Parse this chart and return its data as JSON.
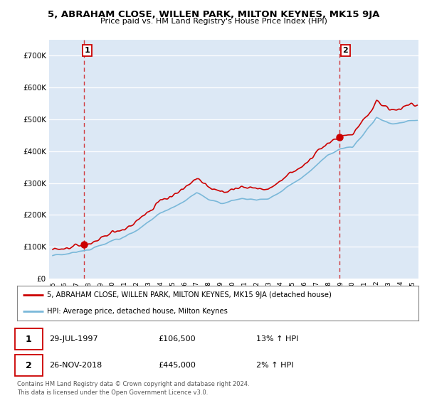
{
  "title": "5, ABRAHAM CLOSE, WILLEN PARK, MILTON KEYNES, MK15 9JA",
  "subtitle": "Price paid vs. HM Land Registry's House Price Index (HPI)",
  "xlim_start": 1994.7,
  "xlim_end": 2025.5,
  "ylim_min": 0,
  "ylim_max": 750000,
  "yticks": [
    0,
    100000,
    200000,
    300000,
    400000,
    500000,
    600000,
    700000
  ],
  "ytick_labels": [
    "£0",
    "£100K",
    "£200K",
    "£300K",
    "£400K",
    "£500K",
    "£600K",
    "£700K"
  ],
  "xticks": [
    1995,
    1996,
    1997,
    1998,
    1999,
    2000,
    2001,
    2002,
    2003,
    2004,
    2005,
    2006,
    2007,
    2008,
    2009,
    2010,
    2011,
    2012,
    2013,
    2014,
    2015,
    2016,
    2017,
    2018,
    2019,
    2020,
    2021,
    2022,
    2023,
    2024,
    2025
  ],
  "outer_bg": "#ffffff",
  "plot_bg_color": "#dce8f5",
  "grid_color": "#ffffff",
  "hpi_color": "#7ab8d9",
  "price_color": "#cc0000",
  "sale1_x": 1997.58,
  "sale1_y": 106500,
  "sale2_x": 2018.9,
  "sale2_y": 445000,
  "sale1_date": "29-JUL-1997",
  "sale1_price": "£106,500",
  "sale1_hpi": "13% ↑ HPI",
  "sale2_date": "26-NOV-2018",
  "sale2_price": "£445,000",
  "sale2_hpi": "2% ↑ HPI",
  "legend_house_label": "5, ABRAHAM CLOSE, WILLEN PARK, MILTON KEYNES, MK15 9JA (detached house)",
  "legend_hpi_label": "HPI: Average price, detached house, Milton Keynes",
  "footer": "Contains HM Land Registry data © Crown copyright and database right 2024.\nThis data is licensed under the Open Government Licence v3.0."
}
